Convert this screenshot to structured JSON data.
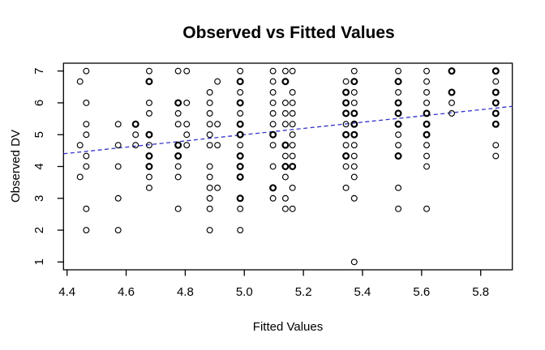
{
  "chart_data": {
    "type": "scatter",
    "title": "Observed vs Fitted Values",
    "xlabel": "Fitted Values",
    "ylabel": "Observed DV",
    "grid": false,
    "legend": "none",
    "xlim": [
      4.388,
      5.907
    ],
    "ylim": [
      0.754,
      7.246
    ],
    "x_tick_values": [
      4.4,
      4.6,
      4.8,
      5.0,
      5.2,
      5.4,
      5.6,
      5.8
    ],
    "x_tick_labels": [
      "4.4",
      "4.6",
      "4.8",
      "5.0",
      "5.2",
      "5.4",
      "5.6",
      "5.8"
    ],
    "y_tick_values": [
      1,
      2,
      3,
      4,
      5,
      6,
      7
    ],
    "y_tick_labels": [
      "1",
      "2",
      "3",
      "4",
      "5",
      "6",
      "7"
    ],
    "point_style": "open-circle",
    "point_color": "#000000",
    "reference_line": {
      "style": "dashed",
      "color": "#3333cc",
      "x1": 4.388,
      "y1": 4.4,
      "x2": 5.907,
      "y2": 5.89
    },
    "points": [
      [
        4.444,
        6.67
      ],
      [
        4.444,
        4.67
      ],
      [
        4.444,
        3.67
      ],
      [
        4.465,
        7
      ],
      [
        4.465,
        6
      ],
      [
        4.465,
        5.33
      ],
      [
        4.465,
        5
      ],
      [
        4.465,
        4.33
      ],
      [
        4.465,
        4
      ],
      [
        4.465,
        2.67
      ],
      [
        4.465,
        2
      ],
      [
        4.573,
        5.33
      ],
      [
        4.573,
        4.67
      ],
      [
        4.573,
        4
      ],
      [
        4.573,
        3
      ],
      [
        4.573,
        2
      ],
      [
        4.632,
        5.33,
        2
      ],
      [
        4.632,
        5
      ],
      [
        4.632,
        4.67
      ],
      [
        4.678,
        7
      ],
      [
        4.678,
        6.67,
        2
      ],
      [
        4.678,
        6
      ],
      [
        4.678,
        5.67
      ],
      [
        4.678,
        5,
        2
      ],
      [
        4.678,
        4.67
      ],
      [
        4.678,
        4.33,
        2
      ],
      [
        4.678,
        4,
        2
      ],
      [
        4.678,
        3.67
      ],
      [
        4.678,
        3.33
      ],
      [
        4.776,
        7
      ],
      [
        4.776,
        6,
        2
      ],
      [
        4.776,
        5.67
      ],
      [
        4.776,
        5.33
      ],
      [
        4.776,
        4.67,
        2
      ],
      [
        4.776,
        4.33,
        2
      ],
      [
        4.776,
        4
      ],
      [
        4.776,
        3.67
      ],
      [
        4.776,
        2.67
      ],
      [
        4.805,
        7
      ],
      [
        4.805,
        6
      ],
      [
        4.805,
        5.33
      ],
      [
        4.805,
        5
      ],
      [
        4.805,
        4.67
      ],
      [
        4.883,
        6.33
      ],
      [
        4.883,
        6
      ],
      [
        4.883,
        5.67
      ],
      [
        4.883,
        5.33
      ],
      [
        4.883,
        5
      ],
      [
        4.883,
        4.67
      ],
      [
        4.883,
        4
      ],
      [
        4.883,
        3.67
      ],
      [
        4.883,
        3.33
      ],
      [
        4.883,
        3
      ],
      [
        4.883,
        2.67
      ],
      [
        4.883,
        2
      ],
      [
        4.909,
        6.67
      ],
      [
        4.909,
        5.33
      ],
      [
        4.909,
        4.67
      ],
      [
        4.909,
        3.33
      ],
      [
        4.986,
        7
      ],
      [
        4.986,
        6.67,
        2
      ],
      [
        4.986,
        6.33
      ],
      [
        4.986,
        6,
        2
      ],
      [
        4.986,
        5.67
      ],
      [
        4.986,
        5.33,
        2
      ],
      [
        4.986,
        5,
        2
      ],
      [
        4.986,
        4.67
      ],
      [
        4.986,
        4.33,
        2
      ],
      [
        4.986,
        4,
        2
      ],
      [
        4.986,
        3.67,
        2
      ],
      [
        4.986,
        3,
        2
      ],
      [
        4.986,
        2.67
      ],
      [
        4.986,
        2
      ],
      [
        5.097,
        7
      ],
      [
        5.097,
        6.67
      ],
      [
        5.097,
        6.33
      ],
      [
        5.097,
        6
      ],
      [
        5.097,
        5.67
      ],
      [
        5.097,
        5.33
      ],
      [
        5.097,
        5,
        2
      ],
      [
        5.097,
        4.67
      ],
      [
        5.097,
        4
      ],
      [
        5.097,
        3.33,
        2
      ],
      [
        5.097,
        3
      ],
      [
        5.139,
        7
      ],
      [
        5.139,
        6.67,
        2
      ],
      [
        5.139,
        6
      ],
      [
        5.139,
        5.67
      ],
      [
        5.139,
        5.33
      ],
      [
        5.139,
        4.67,
        2
      ],
      [
        5.139,
        4.33
      ],
      [
        5.139,
        4,
        2
      ],
      [
        5.139,
        3.67
      ],
      [
        5.139,
        3
      ],
      [
        5.139,
        2.67
      ],
      [
        5.163,
        7
      ],
      [
        5.163,
        6.33
      ],
      [
        5.163,
        6
      ],
      [
        5.163,
        5.67
      ],
      [
        5.163,
        5.33
      ],
      [
        5.163,
        5
      ],
      [
        5.163,
        4.67
      ],
      [
        5.163,
        4.33
      ],
      [
        5.163,
        4,
        2
      ],
      [
        5.163,
        3.33
      ],
      [
        5.163,
        2.67
      ],
      [
        5.344,
        6.67
      ],
      [
        5.344,
        6.33,
        2
      ],
      [
        5.344,
        6,
        2
      ],
      [
        5.344,
        5.67,
        2
      ],
      [
        5.344,
        5.33
      ],
      [
        5.344,
        5,
        2
      ],
      [
        5.344,
        4.67
      ],
      [
        5.344,
        4.33,
        2
      ],
      [
        5.344,
        4
      ],
      [
        5.344,
        3.33
      ],
      [
        5.372,
        7
      ],
      [
        5.372,
        6.67,
        2
      ],
      [
        5.372,
        6.33
      ],
      [
        5.372,
        6
      ],
      [
        5.372,
        5.67,
        2
      ],
      [
        5.372,
        5.33,
        2
      ],
      [
        5.372,
        5,
        2
      ],
      [
        5.372,
        4.67
      ],
      [
        5.372,
        4.33
      ],
      [
        5.372,
        4
      ],
      [
        5.372,
        3.67
      ],
      [
        5.372,
        3
      ],
      [
        5.372,
        1
      ],
      [
        5.521,
        7
      ],
      [
        5.521,
        6.67,
        2
      ],
      [
        5.521,
        6.33
      ],
      [
        5.521,
        6,
        2
      ],
      [
        5.521,
        5.67,
        2
      ],
      [
        5.521,
        5.33,
        2
      ],
      [
        5.521,
        5
      ],
      [
        5.521,
        4.67
      ],
      [
        5.521,
        4.33,
        2
      ],
      [
        5.521,
        3.33
      ],
      [
        5.521,
        2.67
      ],
      [
        5.617,
        7
      ],
      [
        5.617,
        6.67
      ],
      [
        5.617,
        6.33
      ],
      [
        5.617,
        6
      ],
      [
        5.617,
        5.67,
        2
      ],
      [
        5.617,
        5.33,
        2
      ],
      [
        5.617,
        5,
        2
      ],
      [
        5.617,
        4.67
      ],
      [
        5.617,
        4.33
      ],
      [
        5.617,
        4
      ],
      [
        5.617,
        2.67
      ],
      [
        5.702,
        7,
        2
      ],
      [
        5.702,
        6.33,
        2
      ],
      [
        5.702,
        6
      ],
      [
        5.702,
        5.67
      ],
      [
        5.851,
        7,
        2
      ],
      [
        5.851,
        6.67
      ],
      [
        5.851,
        6.33,
        2
      ],
      [
        5.851,
        6,
        2
      ],
      [
        5.851,
        5.67,
        2
      ],
      [
        5.851,
        5.33,
        2
      ],
      [
        5.851,
        4.67
      ],
      [
        5.851,
        4.33
      ]
    ],
    "colors": {
      "background": "#ffffff",
      "axis": "#000000",
      "line": "#3333cc"
    }
  }
}
